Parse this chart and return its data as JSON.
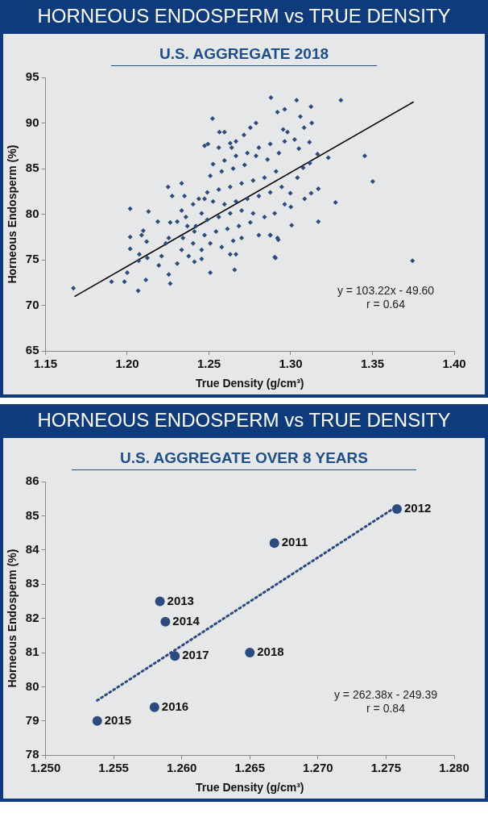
{
  "chart_data": [
    {
      "type": "scatter",
      "title": "HORNEOUS ENDOSPERM vs TRUE DENSITY",
      "subtitle": "U.S. AGGREGATE 2018",
      "xlabel": "True Density (g/cm³)",
      "ylabel": "Horneous Endosperm (%)",
      "xlim": [
        1.15,
        1.4
      ],
      "xticks": [
        {
          "value": 1.15,
          "label": "1.15"
        },
        {
          "value": 1.2,
          "label": "1.20"
        },
        {
          "value": 1.25,
          "label": "1.25"
        },
        {
          "value": 1.3,
          "label": "1.30"
        },
        {
          "value": 1.35,
          "label": "1.35"
        },
        {
          "value": 1.4,
          "label": "1.40"
        }
      ],
      "ylim": [
        65,
        95
      ],
      "yticks": [
        65,
        70,
        75,
        80,
        85,
        90,
        95
      ],
      "series": [
        {
          "type": "scatter",
          "color": "#2b4a7e",
          "marker": "diamond",
          "x": [
            1.1671,
            1.1904,
            1.2018,
            1.2018,
            1.2018,
            1.2,
            1.1983,
            1.2067,
            1.2074,
            1.2088,
            1.2098,
            1.213,
            1.2119,
            1.2114,
            1.2123,
            1.207,
            1.2187,
            1.225,
            1.2275,
            1.2333,
            1.235,
            1.2263,
            1.2306,
            1.2359,
            1.2254,
            1.2236,
            1.221,
            1.2193,
            1.2254,
            1.2263,
            1.2306,
            1.2333,
            1.2376,
            1.2403,
            1.2411,
            1.2403,
            1.2455,
            1.2473,
            1.2522,
            1.2473,
            1.2494,
            1.2564,
            1.2595,
            1.256,
            1.263,
            1.2665,
            1.2639,
            1.2714,
            1.2788,
            1.2753,
            1.2879,
            1.2919,
            1.2963,
            1.2954,
            1.2875,
            1.2805,
            1.2735,
            1.2665,
            1.2595,
            1.2525,
            1.2508,
            1.2578,
            1.2648,
            1.2718,
            1.2788,
            1.2858,
            1.2928,
            1.2963,
            1.291,
            1.284,
            1.277,
            1.27,
            1.263,
            1.256,
            1.249,
            1.2438,
            1.2525,
            1.2595,
            1.2665,
            1.2735,
            1.2805,
            1.2875,
            1.2945,
            1.2963,
            1.2902,
            1.284,
            1.277,
            1.27,
            1.263,
            1.256,
            1.249,
            1.242,
            1.2473,
            1.2543,
            1.2613,
            1.2683,
            1.2753,
            1.2805,
            1.2875,
            1.2919,
            1.2902,
            1.2665,
            1.263,
            1.2578,
            1.2508,
            1.2455,
            1.2411,
            1.2455,
            1.2508,
            1.2657,
            1.27,
            1.2648,
            1.2341,
            1.2368,
            1.2333,
            1.3036,
            1.3124,
            1.3307,
            1.3059,
            1.3082,
            1.3129,
            1.298,
            1.3024,
            1.3115,
            1.305,
            1.3164,
            1.323,
            1.3453,
            1.3502,
            1.3117,
            1.3076,
            1.3041,
            1.3169,
            1.3125,
            1.3085,
            1.3274,
            1.2998,
            1.3001,
            1.3169,
            1.3006,
            1.2924,
            1.2907,
            1.3745,
            1.2875
          ],
          "values": [
            71.9,
            72.6,
            80.6,
            77.5,
            76.2,
            73.6,
            72.6,
            71.6,
            75.6,
            77.7,
            78.2,
            80.3,
            77.0,
            72.8,
            75.2,
            74.9,
            79.2,
            83.0,
            82.0,
            83.4,
            82.0,
            79.1,
            79.2,
            79.7,
            77.4,
            76.8,
            75.4,
            74.4,
            73.4,
            72.4,
            74.6,
            76.1,
            75.4,
            76.8,
            78.1,
            81.1,
            80.1,
            81.7,
            90.5,
            87.5,
            87.7,
            89.0,
            89.0,
            87.3,
            87.8,
            88.0,
            87.3,
            88.7,
            90.0,
            89.5,
            92.8,
            91.2,
            91.5,
            89.3,
            87.7,
            87.3,
            86.7,
            86.4,
            85.9,
            85.5,
            84.2,
            84.7,
            85.0,
            85.4,
            86.4,
            86.0,
            86.7,
            88.0,
            84.7,
            84.0,
            83.7,
            83.4,
            83.0,
            82.7,
            82.4,
            81.7,
            81.4,
            81.1,
            81.4,
            81.7,
            82.0,
            82.4,
            83.0,
            81.1,
            80.1,
            79.7,
            80.1,
            80.4,
            80.1,
            79.7,
            79.4,
            78.7,
            77.7,
            78.1,
            78.4,
            78.7,
            79.1,
            77.7,
            77.7,
            77.4,
            75.3,
            75.6,
            75.6,
            76.4,
            76.8,
            76.1,
            74.8,
            75.1,
            73.6,
            73.9,
            77.4,
            77.1,
            77.4,
            78.7,
            80.4,
            92.5,
            91.8,
            92.5,
            90.7,
            89.5,
            90.0,
            89.0,
            88.2,
            87.9,
            87.2,
            86.6,
            86.2,
            86.4,
            83.6,
            85.6,
            85.1,
            84.0,
            82.8,
            82.3,
            81.7,
            81.3,
            82.3,
            80.8,
            79.2,
            78.8,
            77.2,
            75.2,
            74.9,
            77.7
          ]
        },
        {
          "type": "line",
          "color": "#000000",
          "line_style": "solid",
          "x": [
            1.168,
            1.375
          ],
          "values": [
            71.0,
            92.3
          ]
        }
      ],
      "annotations": [
        "y = 103.22x - 49.60",
        "r = 0.64"
      ]
    },
    {
      "type": "scatter",
      "title": "HORNEOUS ENDOSPERM vs TRUE DENSITY",
      "subtitle": "U.S. AGGREGATE OVER 8 YEARS",
      "xlabel": "True Density (g/cm³)",
      "ylabel": "Horneous Endosperm (%)",
      "xlim": [
        1.25,
        1.28
      ],
      "xticks": [
        {
          "value": 1.25,
          "label": "1.250"
        },
        {
          "value": 1.255,
          "label": "1.255"
        },
        {
          "value": 1.26,
          "label": "1.260"
        },
        {
          "value": 1.265,
          "label": "1.265"
        },
        {
          "value": 1.27,
          "label": "1.270"
        },
        {
          "value": 1.275,
          "label": "1.275"
        },
        {
          "value": 1.28,
          "label": "1.280"
        }
      ],
      "ylim": [
        78,
        86
      ],
      "yticks": [
        78,
        79,
        80,
        81,
        82,
        83,
        84,
        85,
        86
      ],
      "series": [
        {
          "type": "scatter",
          "color": "#2b4a7e",
          "marker": "circle",
          "x": [
            1.2668,
            1.2758,
            1.2584,
            1.2588,
            1.2538,
            1.258,
            1.2595,
            1.265
          ],
          "values": [
            84.2,
            85.2,
            82.5,
            81.9,
            79.0,
            79.4,
            80.9,
            81.0
          ]
        },
        {
          "type": "line",
          "color": "#2b4a7e",
          "line_style": "dotted",
          "x": [
            1.2538,
            1.2755
          ],
          "values": [
            79.6,
            85.2
          ]
        }
      ],
      "annotations": [
        {
          "text": "2011",
          "x": 1.2668,
          "y": 84.2
        },
        {
          "text": "2012",
          "x": 1.2758,
          "y": 85.2
        },
        {
          "text": "2013",
          "x": 1.2584,
          "y": 82.5
        },
        {
          "text": "2014",
          "x": 1.2588,
          "y": 81.9
        },
        {
          "text": "2015",
          "x": 1.2538,
          "y": 79.0
        },
        {
          "text": "2016",
          "x": 1.258,
          "y": 79.4
        },
        {
          "text": "2017",
          "x": 1.2595,
          "y": 80.9
        },
        {
          "text": "2018",
          "x": 1.265,
          "y": 81.0
        },
        "y = 262.38x - 249.39",
        "r = 0.84"
      ]
    }
  ]
}
